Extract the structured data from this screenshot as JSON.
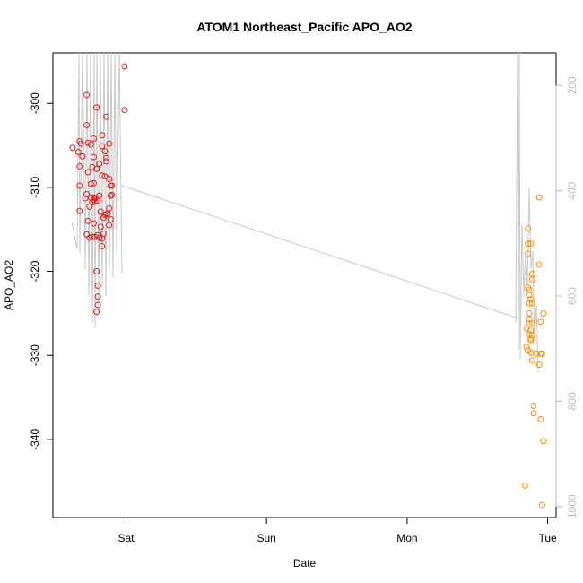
{
  "chart_data": {
    "type": "scatter",
    "title": "ATOM1 Northeast_Pacific APO_AO2",
    "xlabel": "Date",
    "ylabel": "APO_AO2",
    "x_ticks": [
      "Sat",
      "Sun",
      "Mon",
      "Tue"
    ],
    "xlim": [
      -0.52,
      3.06
    ],
    "ylim": [
      -349.3,
      -294.0
    ],
    "y_ticks": [
      -300,
      -310,
      -320,
      -330,
      -340
    ],
    "y2_ticks": [
      200,
      400,
      600,
      800,
      1000
    ],
    "y2_lim": [
      138,
      1021
    ],
    "grid": false,
    "colors": {
      "early": "#e41a1c",
      "late": "#ff8c00",
      "profile": "#c8c8c8"
    },
    "series": [
      {
        "points": [
          [
            -0.38,
            -305.3
          ],
          [
            -0.34,
            -305.8
          ],
          [
            -0.33,
            -307.5
          ],
          [
            -0.33,
            -312.8
          ],
          [
            -0.33,
            -309.8
          ],
          [
            -0.33,
            -304.5
          ],
          [
            -0.32,
            -304.8
          ],
          [
            -0.31,
            -306.3
          ],
          [
            -0.29,
            -311.3
          ],
          [
            -0.28,
            -310.8
          ],
          [
            -0.28,
            -315.6
          ],
          [
            -0.28,
            -299.0
          ],
          [
            -0.28,
            -302.6
          ],
          [
            -0.27,
            -304.7
          ],
          [
            -0.27,
            -308.2
          ],
          [
            -0.27,
            -314.0
          ],
          [
            -0.26,
            -312.3
          ],
          [
            -0.26,
            -316.0
          ],
          [
            -0.25,
            -311.2
          ],
          [
            -0.25,
            -309.6
          ],
          [
            -0.25,
            -304.9
          ],
          [
            -0.24,
            -307.6
          ],
          [
            -0.24,
            -311.8
          ],
          [
            -0.24,
            -315.9
          ],
          [
            -0.23,
            -311.5
          ],
          [
            -0.23,
            -304.2
          ],
          [
            -0.23,
            -306.4
          ],
          [
            -0.23,
            -309.5
          ],
          [
            -0.23,
            -311.2
          ],
          [
            -0.23,
            -314.3
          ],
          [
            -0.22,
            -311.7
          ],
          [
            -0.22,
            -311.3
          ],
          [
            -0.22,
            -315.9
          ],
          [
            -0.21,
            -324.8
          ],
          [
            -0.21,
            -320.0
          ],
          [
            -0.21,
            -300.5
          ],
          [
            -0.21,
            -307.8
          ],
          [
            -0.2,
            -311.6
          ],
          [
            -0.2,
            -315.7
          ],
          [
            -0.2,
            -323.0
          ],
          [
            -0.2,
            -324.0
          ],
          [
            -0.2,
            -321.7
          ],
          [
            -0.19,
            -307.2
          ],
          [
            -0.19,
            -311.0
          ],
          [
            -0.19,
            -316.0
          ],
          [
            -0.18,
            -312.9
          ],
          [
            -0.18,
            -314.7
          ],
          [
            -0.17,
            -303.8
          ],
          [
            -0.17,
            -305.1
          ],
          [
            -0.17,
            -308.6
          ],
          [
            -0.17,
            -317.0
          ],
          [
            -0.17,
            -316.1
          ],
          [
            -0.16,
            -313.6
          ],
          [
            -0.16,
            -315.5
          ],
          [
            -0.15,
            -308.7
          ],
          [
            -0.15,
            -313.3
          ],
          [
            -0.15,
            -305.7
          ],
          [
            -0.14,
            -301.6
          ],
          [
            -0.14,
            -306.5
          ],
          [
            -0.14,
            -313.2
          ],
          [
            -0.14,
            -306.9
          ],
          [
            -0.13,
            -313.1
          ],
          [
            -0.12,
            -304.8
          ],
          [
            -0.12,
            -309.0
          ],
          [
            -0.12,
            -312.5
          ],
          [
            -0.12,
            -314.5
          ],
          [
            -0.11,
            -309.8
          ],
          [
            -0.11,
            -313.8
          ],
          [
            -0.11,
            -311.0
          ],
          [
            -0.1,
            -309.8
          ],
          [
            -0.1,
            -310.9
          ],
          [
            -0.01,
            -295.6
          ],
          [
            -0.01,
            -300.8
          ]
        ]
      },
      {
        "points": [
          [
            2.84,
            -345.5
          ],
          [
            2.85,
            -329.0
          ],
          [
            2.85,
            -326.8
          ],
          [
            2.86,
            -321.9
          ],
          [
            2.86,
            -317.9
          ],
          [
            2.86,
            -316.7
          ],
          [
            2.86,
            -314.9
          ],
          [
            2.86,
            -329.4
          ],
          [
            2.87,
            -322.2
          ],
          [
            2.87,
            -322.8
          ],
          [
            2.87,
            -323.8
          ],
          [
            2.87,
            -325.0
          ],
          [
            2.87,
            -325.7
          ],
          [
            2.87,
            -326.2
          ],
          [
            2.87,
            -327.5
          ],
          [
            2.88,
            -328.0
          ],
          [
            2.88,
            -329.7
          ],
          [
            2.88,
            -316.7
          ],
          [
            2.88,
            -328.2
          ],
          [
            2.88,
            -323.3
          ],
          [
            2.88,
            -327.0
          ],
          [
            2.89,
            -321.0
          ],
          [
            2.89,
            -320.3
          ],
          [
            2.89,
            -323.8
          ],
          [
            2.89,
            -326.2
          ],
          [
            2.89,
            -327.6
          ],
          [
            2.89,
            -330.6
          ],
          [
            2.9,
            -336.0
          ],
          [
            2.9,
            -336.9
          ],
          [
            2.92,
            -329.8
          ],
          [
            2.94,
            -311.2
          ],
          [
            2.94,
            -319.2
          ],
          [
            2.94,
            -331.1
          ],
          [
            2.95,
            -326.0
          ],
          [
            2.95,
            -329.8
          ],
          [
            2.95,
            -337.6
          ],
          [
            2.96,
            -347.8
          ],
          [
            2.96,
            -329.8
          ],
          [
            2.97,
            -340.2
          ],
          [
            2.97,
            -325.0
          ]
        ]
      }
    ]
  }
}
